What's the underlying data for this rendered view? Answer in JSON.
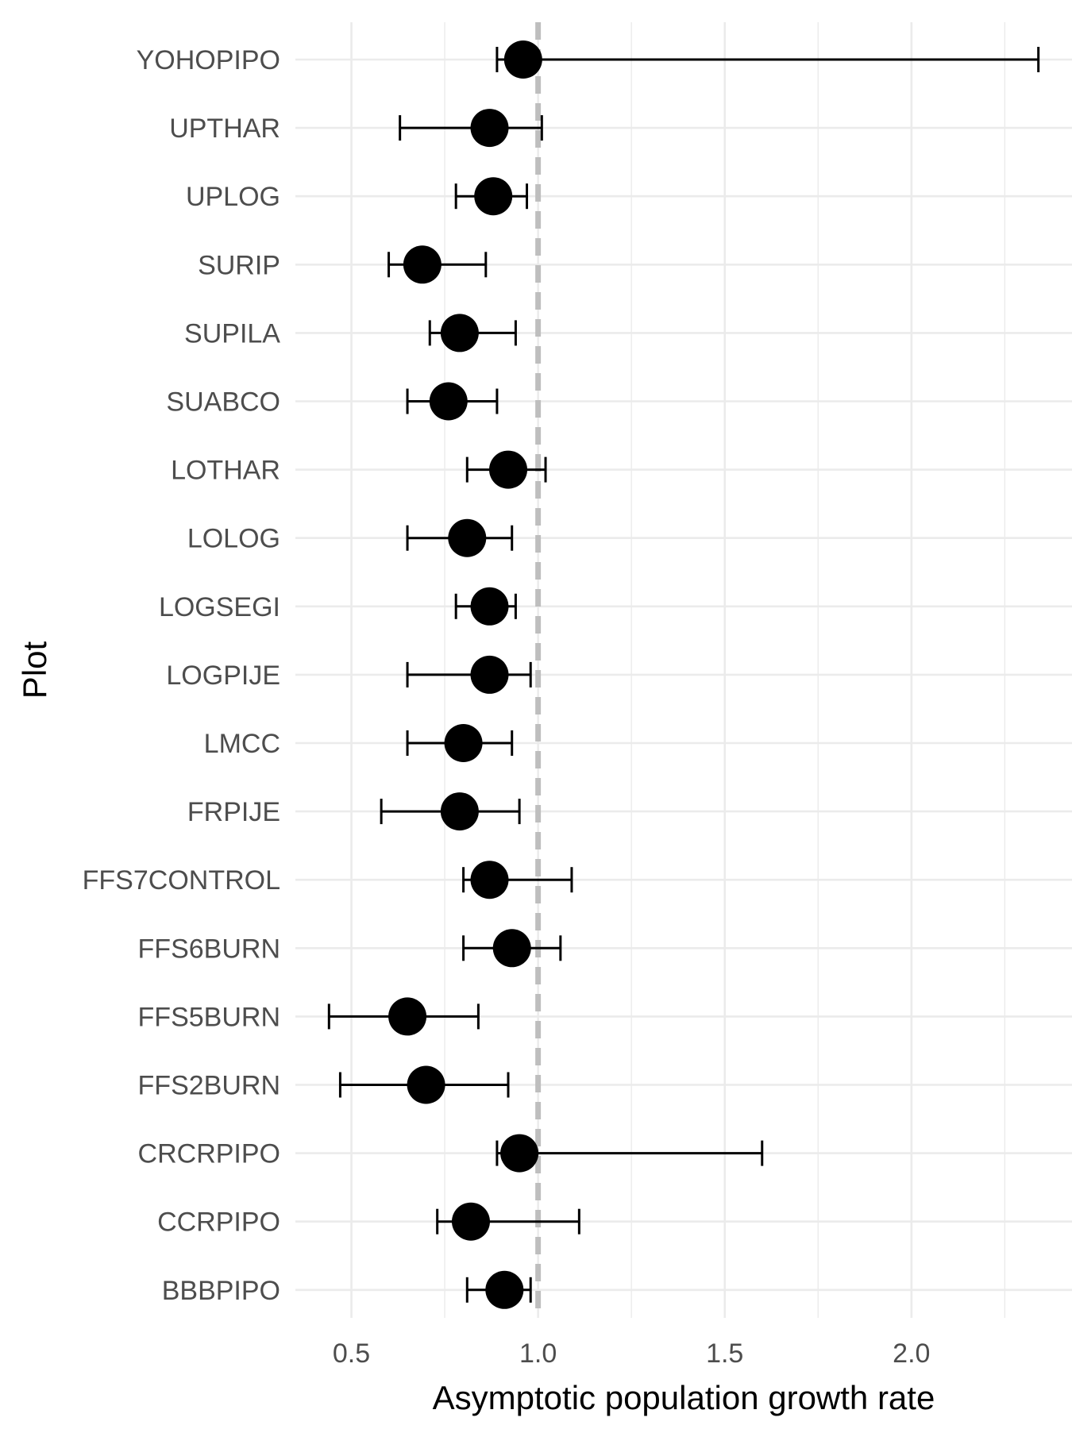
{
  "chart_data": {
    "type": "scatter",
    "orientation": "horizontal",
    "xlabel": "Asymptotic population growth rate",
    "ylabel": "Plot",
    "xlim": [
      0.35,
      2.43
    ],
    "x_ticks": [
      0.5,
      1.0,
      1.5,
      2.0
    ],
    "x_tick_labels": [
      "0.5",
      "1.0",
      "1.5",
      "2.0"
    ],
    "reference_line": {
      "x": 1.0,
      "style": "dashed",
      "color": "#bebebe"
    },
    "grid": true,
    "point_color": "#000000",
    "categories": [
      "YOHOPIPO",
      "UPTHAR",
      "UPLOG",
      "SURIP",
      "SUPILA",
      "SUABCO",
      "LOTHAR",
      "LOLOG",
      "LOGSEGI",
      "LOGPIJE",
      "LMCC",
      "FRPIJE",
      "FFS7CONTROL",
      "FFS6BURN",
      "FFS5BURN",
      "FFS2BURN",
      "CRCRPIPO",
      "CCRPIPO",
      "BBBPIPO"
    ],
    "values": [
      0.96,
      0.87,
      0.88,
      0.69,
      0.79,
      0.76,
      0.92,
      0.81,
      0.87,
      0.87,
      0.8,
      0.79,
      0.87,
      0.93,
      0.65,
      0.7,
      0.95,
      0.82,
      0.91
    ],
    "lower": [
      0.89,
      0.63,
      0.78,
      0.6,
      0.71,
      0.65,
      0.81,
      0.65,
      0.78,
      0.65,
      0.65,
      0.58,
      0.8,
      0.8,
      0.44,
      0.47,
      0.89,
      0.73,
      0.81
    ],
    "upper": [
      2.34,
      1.01,
      0.97,
      0.86,
      0.94,
      0.89,
      1.02,
      0.93,
      0.94,
      0.98,
      0.93,
      0.95,
      1.09,
      1.06,
      0.84,
      0.92,
      1.6,
      1.11,
      0.98
    ]
  }
}
